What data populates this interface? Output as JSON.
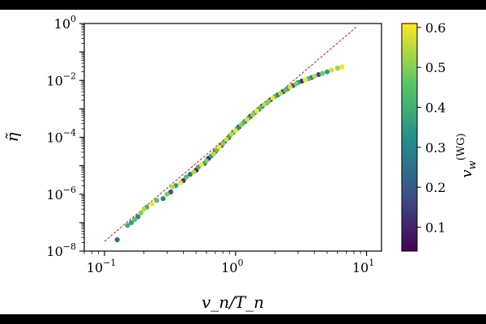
{
  "chart_data": {
    "type": "scatter",
    "title": "",
    "xlabel": "v_n/T_n",
    "ylabel": "η̃",
    "xscale": "log",
    "yscale": "log",
    "xlim": [
      0.07,
      13
    ],
    "ylim": [
      1e-08,
      1
    ],
    "x_ticks": [
      {
        "value": 0.1,
        "base": "10",
        "exp": "−1"
      },
      {
        "value": 1,
        "base": "10",
        "exp": "0"
      },
      {
        "value": 10,
        "base": "10",
        "exp": "1"
      }
    ],
    "y_ticks": [
      {
        "value": 1e-08,
        "base": "10",
        "exp": "−8"
      },
      {
        "value": 1e-06,
        "base": "10",
        "exp": "−6"
      },
      {
        "value": 0.0001,
        "base": "10",
        "exp": "−4"
      },
      {
        "value": 0.01,
        "base": "10",
        "exp": "−2"
      },
      {
        "value": 1,
        "base": "10",
        "exp": "0"
      }
    ],
    "reference_line": {
      "color": "#cc0000",
      "style": "dashed",
      "slope_decades": 4.3,
      "points": [
        [
          0.1,
          2.2e-08
        ],
        [
          8.5,
          0.8
        ]
      ]
    },
    "colorbar": {
      "label": "v_w^(WG)",
      "label_main": "v",
      "label_sub": "w",
      "label_sup": "(WG)",
      "range": [
        0.04,
        0.61
      ],
      "ticks": [
        "0.1",
        "0.2",
        "0.3",
        "0.4",
        "0.5",
        "0.6"
      ],
      "colormap": "viridis"
    },
    "series": [
      {
        "name": "points",
        "points": [
          [
            0.125,
            2.5e-08,
            0.25
          ],
          [
            0.15,
            8e-08,
            0.4
          ],
          [
            0.16,
            1e-07,
            0.35
          ],
          [
            0.17,
            1.3e-07,
            0.45
          ],
          [
            0.18,
            1.6e-07,
            0.3
          ],
          [
            0.19,
            2.2e-07,
            0.5
          ],
          [
            0.2,
            3e-07,
            0.55
          ],
          [
            0.21,
            3.5e-07,
            0.4
          ],
          [
            0.23,
            4.5e-07,
            0.6
          ],
          [
            0.25,
            6e-07,
            0.45
          ],
          [
            0.28,
            7e-07,
            0.3
          ],
          [
            0.3,
            1e-06,
            0.5
          ],
          [
            0.32,
            1.2e-06,
            0.2
          ],
          [
            0.33,
            1.8e-06,
            0.55
          ],
          [
            0.35,
            2e-06,
            0.35
          ],
          [
            0.38,
            2.5e-06,
            0.6
          ],
          [
            0.4,
            3e-06,
            0.15
          ],
          [
            0.42,
            4e-06,
            0.45
          ],
          [
            0.45,
            5e-06,
            0.25
          ],
          [
            0.48,
            6e-06,
            0.55
          ],
          [
            0.5,
            7e-06,
            0.1
          ],
          [
            0.52,
            9e-06,
            0.4
          ],
          [
            0.55,
            1.1e-05,
            0.6
          ],
          [
            0.58,
            1.2e-05,
            0.3
          ],
          [
            0.6,
            1.5e-05,
            0.5
          ],
          [
            0.62,
            1.8e-05,
            0.08
          ],
          [
            0.65,
            2.2e-05,
            0.35
          ],
          [
            0.68,
            2.6e-05,
            0.55
          ],
          [
            0.7,
            3.2e-05,
            0.2
          ],
          [
            0.72,
            3.6e-05,
            0.45
          ],
          [
            0.75,
            4.5e-05,
            0.6
          ],
          [
            0.78,
            5.2e-05,
            0.12
          ],
          [
            0.8,
            6e-05,
            0.5
          ],
          [
            0.83,
            7.2e-05,
            0.3
          ],
          [
            0.85,
            8.4e-05,
            0.58
          ],
          [
            0.88,
            9.5e-05,
            0.15
          ],
          [
            0.9,
            0.00011,
            0.4
          ],
          [
            0.93,
            0.00013,
            0.55
          ],
          [
            0.96,
            0.00015,
            0.25
          ],
          [
            1.0,
            0.00017,
            0.6
          ],
          [
            1.03,
            0.0002,
            0.35
          ],
          [
            1.06,
            0.00023,
            0.1
          ],
          [
            1.1,
            0.00027,
            0.5
          ],
          [
            1.14,
            0.00031,
            0.45
          ],
          [
            1.18,
            0.00036,
            0.2
          ],
          [
            1.22,
            0.00042,
            0.58
          ],
          [
            1.26,
            0.00048,
            0.38
          ],
          [
            1.3,
            0.00055,
            0.12
          ],
          [
            1.35,
            0.00063,
            0.52
          ],
          [
            1.4,
            0.00073,
            0.3
          ],
          [
            1.45,
            0.00084,
            0.6
          ],
          [
            1.5,
            0.00096,
            0.22
          ],
          [
            1.55,
            0.0011,
            0.45
          ],
          [
            1.6,
            0.00125,
            0.08
          ],
          [
            1.66,
            0.0014,
            0.55
          ],
          [
            1.72,
            0.0016,
            0.35
          ],
          [
            1.78,
            0.0018,
            0.5
          ],
          [
            1.85,
            0.0021,
            0.15
          ],
          [
            1.92,
            0.0024,
            0.6
          ],
          [
            2.0,
            0.0027,
            0.4
          ],
          [
            2.1,
            0.0031,
            0.25
          ],
          [
            2.2,
            0.0035,
            0.55
          ],
          [
            2.3,
            0.004,
            0.1
          ],
          [
            2.4,
            0.0045,
            0.45
          ],
          [
            2.5,
            0.0051,
            0.3
          ],
          [
            2.6,
            0.0058,
            0.58
          ],
          [
            2.75,
            0.0066,
            0.2
          ],
          [
            2.9,
            0.0075,
            0.5
          ],
          [
            3.0,
            0.0084,
            0.35
          ],
          [
            3.2,
            0.0094,
            0.12
          ],
          [
            3.4,
            0.0105,
            0.6
          ],
          [
            3.6,
            0.0115,
            0.42
          ],
          [
            3.8,
            0.0125,
            0.28
          ],
          [
            4.0,
            0.014,
            0.55
          ],
          [
            4.3,
            0.016,
            0.18
          ],
          [
            4.6,
            0.0175,
            0.48
          ],
          [
            5.0,
            0.02,
            0.36
          ],
          [
            5.4,
            0.023,
            0.58
          ],
          [
            6.0,
            0.027,
            0.52
          ],
          [
            6.5,
            0.03,
            0.6
          ]
        ]
      }
    ]
  }
}
